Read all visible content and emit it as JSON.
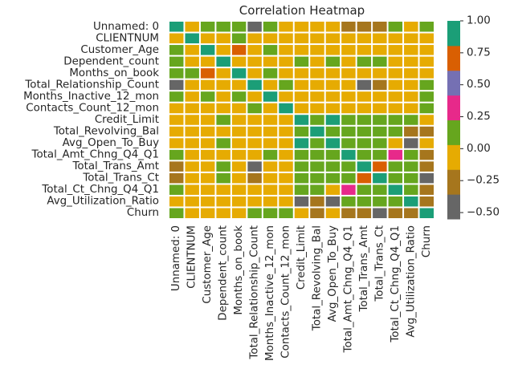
{
  "chart_data": {
    "type": "heatmap",
    "title": "Correlation Heatmap",
    "colormap": "Dark2",
    "colors": [
      "#666666",
      "#a6761d",
      "#e6ab02",
      "#66a61e",
      "#e7298a",
      "#7570b3",
      "#d95f02",
      "#1b9e77"
    ],
    "vmin": -0.55,
    "vmax": 1.0,
    "colorbar_ticks": [
      "1.00",
      "0.75",
      "0.50",
      "0.25",
      "0.00",
      "−0.25",
      "−0.50"
    ],
    "colorbar_tick_values": [
      1.0,
      0.75,
      0.5,
      0.25,
      0.0,
      -0.25,
      -0.5
    ],
    "rows": [
      "Unnamed: 0",
      "CLIENTNUM",
      "Customer_Age",
      "Dependent_count",
      "Months_on_book",
      "Total_Relationship_Count",
      "Months_Inactive_12_mon",
      "Contacts_Count_12_mon",
      "Credit_Limit",
      "Total_Revolving_Bal",
      "Avg_Open_To_Buy",
      "Total_Amt_Chng_Q4_Q1",
      "Total_Trans_Amt",
      "Total_Trans_Ct",
      "Total_Ct_Chng_Q4_Q1",
      "Avg_Utilization_Ratio",
      "Churn"
    ],
    "columns": [
      "Unnamed: 0",
      "CLIENTNUM",
      "Customer_Age",
      "Dependent_count",
      "Months_on_book",
      "Total_Relationship_Count",
      "Months_Inactive_12_mon",
      "Contacts_Count_12_mon",
      "Credit_Limit",
      "Total_Revolving_Bal",
      "Avg_Open_To_Buy",
      "Total_Amt_Chng_Q4_Q1",
      "Total_Trans_Amt",
      "Total_Trans_Ct",
      "Total_Ct_Chng_Q4_Q1",
      "Avg_Utilization_Ratio",
      "Churn"
    ],
    "values": [
      [
        1.0,
        0.02,
        0.04,
        0.1,
        0.04,
        -0.5,
        0.1,
        0.02,
        0.01,
        0.02,
        0.01,
        -0.3,
        -0.3,
        -0.3,
        0.05,
        0.0,
        0.1
      ],
      [
        0.02,
        1.0,
        0.01,
        0.01,
        0.1,
        0.01,
        0.02,
        0.01,
        0.01,
        0.0,
        0.01,
        0.02,
        0.02,
        0.0,
        0.01,
        0.0,
        0.02
      ],
      [
        0.04,
        0.01,
        1.0,
        0.02,
        0.8,
        0.02,
        0.1,
        0.0,
        0.01,
        0.02,
        0.01,
        0.0,
        0.0,
        0.0,
        0.01,
        0.0,
        0.02
      ],
      [
        0.1,
        0.01,
        0.02,
        1.0,
        0.01,
        0.02,
        0.01,
        0.01,
        0.1,
        0.02,
        0.1,
        0.01,
        0.1,
        0.1,
        0.01,
        0.01,
        0.02
      ],
      [
        0.04,
        0.1,
        0.8,
        0.01,
        1.0,
        0.01,
        0.1,
        0.01,
        0.01,
        0.01,
        0.01,
        0.01,
        0.01,
        0.01,
        0.01,
        0.01,
        0.01
      ],
      [
        -0.5,
        0.01,
        0.02,
        0.02,
        0.01,
        1.0,
        0.01,
        0.1,
        0.01,
        0.01,
        0.01,
        0.01,
        -0.5,
        -0.3,
        0.01,
        0.01,
        0.1
      ],
      [
        0.1,
        0.02,
        0.1,
        0.01,
        0.1,
        0.01,
        1.0,
        0.01,
        0.01,
        0.01,
        0.01,
        0.01,
        0.01,
        0.01,
        0.01,
        0.01,
        0.1
      ],
      [
        0.02,
        0.01,
        0.0,
        0.01,
        0.01,
        0.1,
        0.01,
        1.0,
        0.01,
        0.01,
        0.01,
        0.01,
        0.01,
        0.01,
        0.01,
        0.01,
        0.1
      ],
      [
        0.01,
        0.01,
        0.01,
        0.1,
        0.01,
        0.01,
        0.01,
        0.01,
        1.0,
        0.1,
        1.0,
        0.1,
        0.1,
        0.1,
        0.1,
        0.1,
        0.01
      ],
      [
        0.02,
        0.0,
        0.02,
        0.02,
        0.01,
        0.01,
        0.01,
        0.01,
        0.1,
        1.0,
        0.1,
        0.1,
        0.1,
        0.1,
        0.1,
        -0.3,
        -0.2
      ],
      [
        0.01,
        0.01,
        0.01,
        0.1,
        0.01,
        0.01,
        0.01,
        0.01,
        1.0,
        0.1,
        1.0,
        0.1,
        0.1,
        0.1,
        0.01,
        -0.5,
        0.01
      ],
      [
        0.05,
        0.02,
        0.0,
        0.01,
        0.01,
        0.01,
        0.1,
        0.01,
        0.1,
        0.1,
        0.1,
        1.0,
        0.1,
        0.1,
        0.35,
        0.1,
        -0.2
      ],
      [
        -0.3,
        0.02,
        0.0,
        0.1,
        0.01,
        -0.5,
        0.01,
        0.01,
        0.1,
        0.1,
        0.1,
        0.1,
        1.0,
        0.8,
        0.1,
        0.1,
        -0.2
      ],
      [
        -0.3,
        0.0,
        0.0,
        0.1,
        0.01,
        -0.3,
        0.01,
        0.01,
        0.1,
        0.1,
        0.1,
        0.1,
        0.8,
        1.0,
        0.1,
        0.1,
        -0.5
      ],
      [
        0.05,
        0.01,
        0.01,
        0.01,
        0.01,
        0.01,
        0.01,
        0.01,
        0.1,
        0.1,
        0.01,
        0.35,
        0.1,
        0.1,
        1.0,
        0.1,
        -0.2
      ],
      [
        0.0,
        0.0,
        0.0,
        0.01,
        0.01,
        0.01,
        0.01,
        0.01,
        -0.5,
        -0.3,
        -0.5,
        0.1,
        0.1,
        0.1,
        0.1,
        1.0,
        -0.2
      ],
      [
        0.1,
        0.02,
        0.02,
        0.02,
        0.01,
        0.1,
        0.1,
        0.1,
        0.01,
        -0.2,
        0.01,
        -0.2,
        -0.2,
        -0.5,
        -0.2,
        -0.2,
        1.0
      ]
    ]
  }
}
